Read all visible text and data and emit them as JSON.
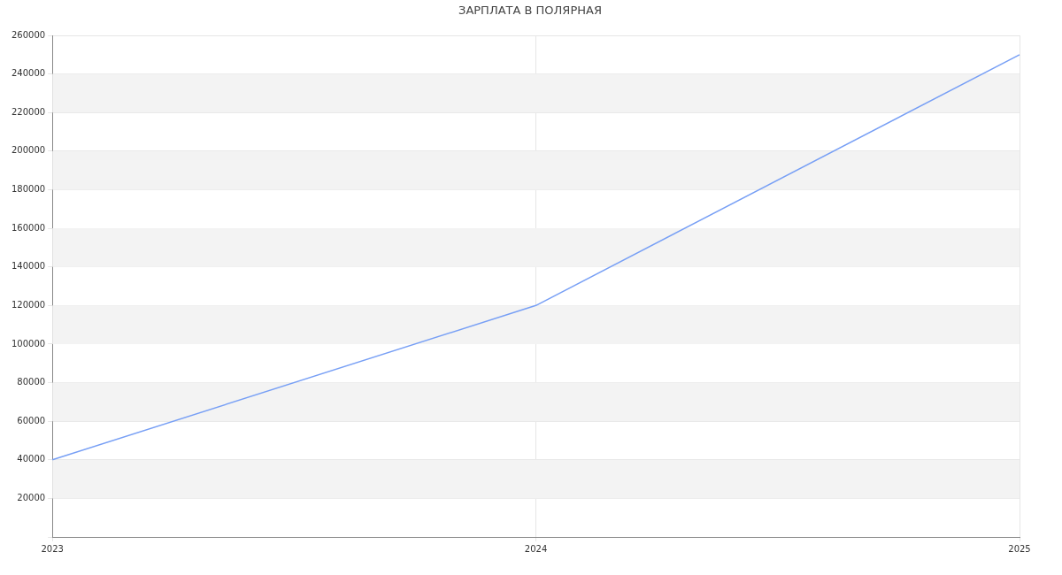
{
  "chart_data": {
    "type": "line",
    "title": "ЗАРПЛАТА В ПОЛЯРНАЯ",
    "categories": [
      "2023",
      "2024",
      "2025"
    ],
    "series": [
      {
        "color": "#779ff5",
        "values": [
          40000,
          120000,
          250000
        ]
      }
    ],
    "ylim": [
      0,
      260000
    ],
    "yticks": [
      {
        "value": 0,
        "label": null
      },
      20000,
      40000,
      60000,
      80000,
      100000,
      120000,
      140000,
      160000,
      180000,
      200000,
      220000,
      240000,
      260000
    ],
    "grid": true,
    "legend": false,
    "marker": "none",
    "line_style": "solid"
  }
}
